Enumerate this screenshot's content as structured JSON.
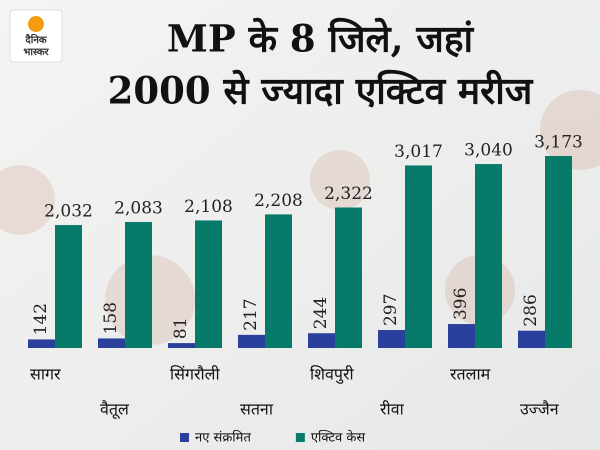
{
  "brand": [
    "दैनिक",
    "भास्कर"
  ],
  "chart_data": {
    "type": "bar",
    "title": [
      "MP के 8 जिले, जहां",
      "2000 से ज्यादा एक्टिव मरीज"
    ],
    "categories": [
      "सागर",
      "वैतूल",
      "सिंगरौली",
      "सतना",
      "शिवपुरी",
      "रीवा",
      "रतलाम",
      "उज्जैन"
    ],
    "series": [
      {
        "name": "नए संक्रमित",
        "color": "#2b3f9c",
        "values": [
          142,
          158,
          81,
          217,
          244,
          297,
          396,
          286
        ]
      },
      {
        "name": "एक्टिव केस",
        "color": "#087a6a",
        "values": [
          2032,
          2083,
          2108,
          2208,
          2322,
          3017,
          3040,
          3173
        ],
        "value_labels": [
          "2,032",
          "2,083",
          "2,108",
          "2,208",
          "2,322",
          "3,017",
          "3,040",
          "3,173"
        ]
      }
    ],
    "legend": "bottom"
  }
}
